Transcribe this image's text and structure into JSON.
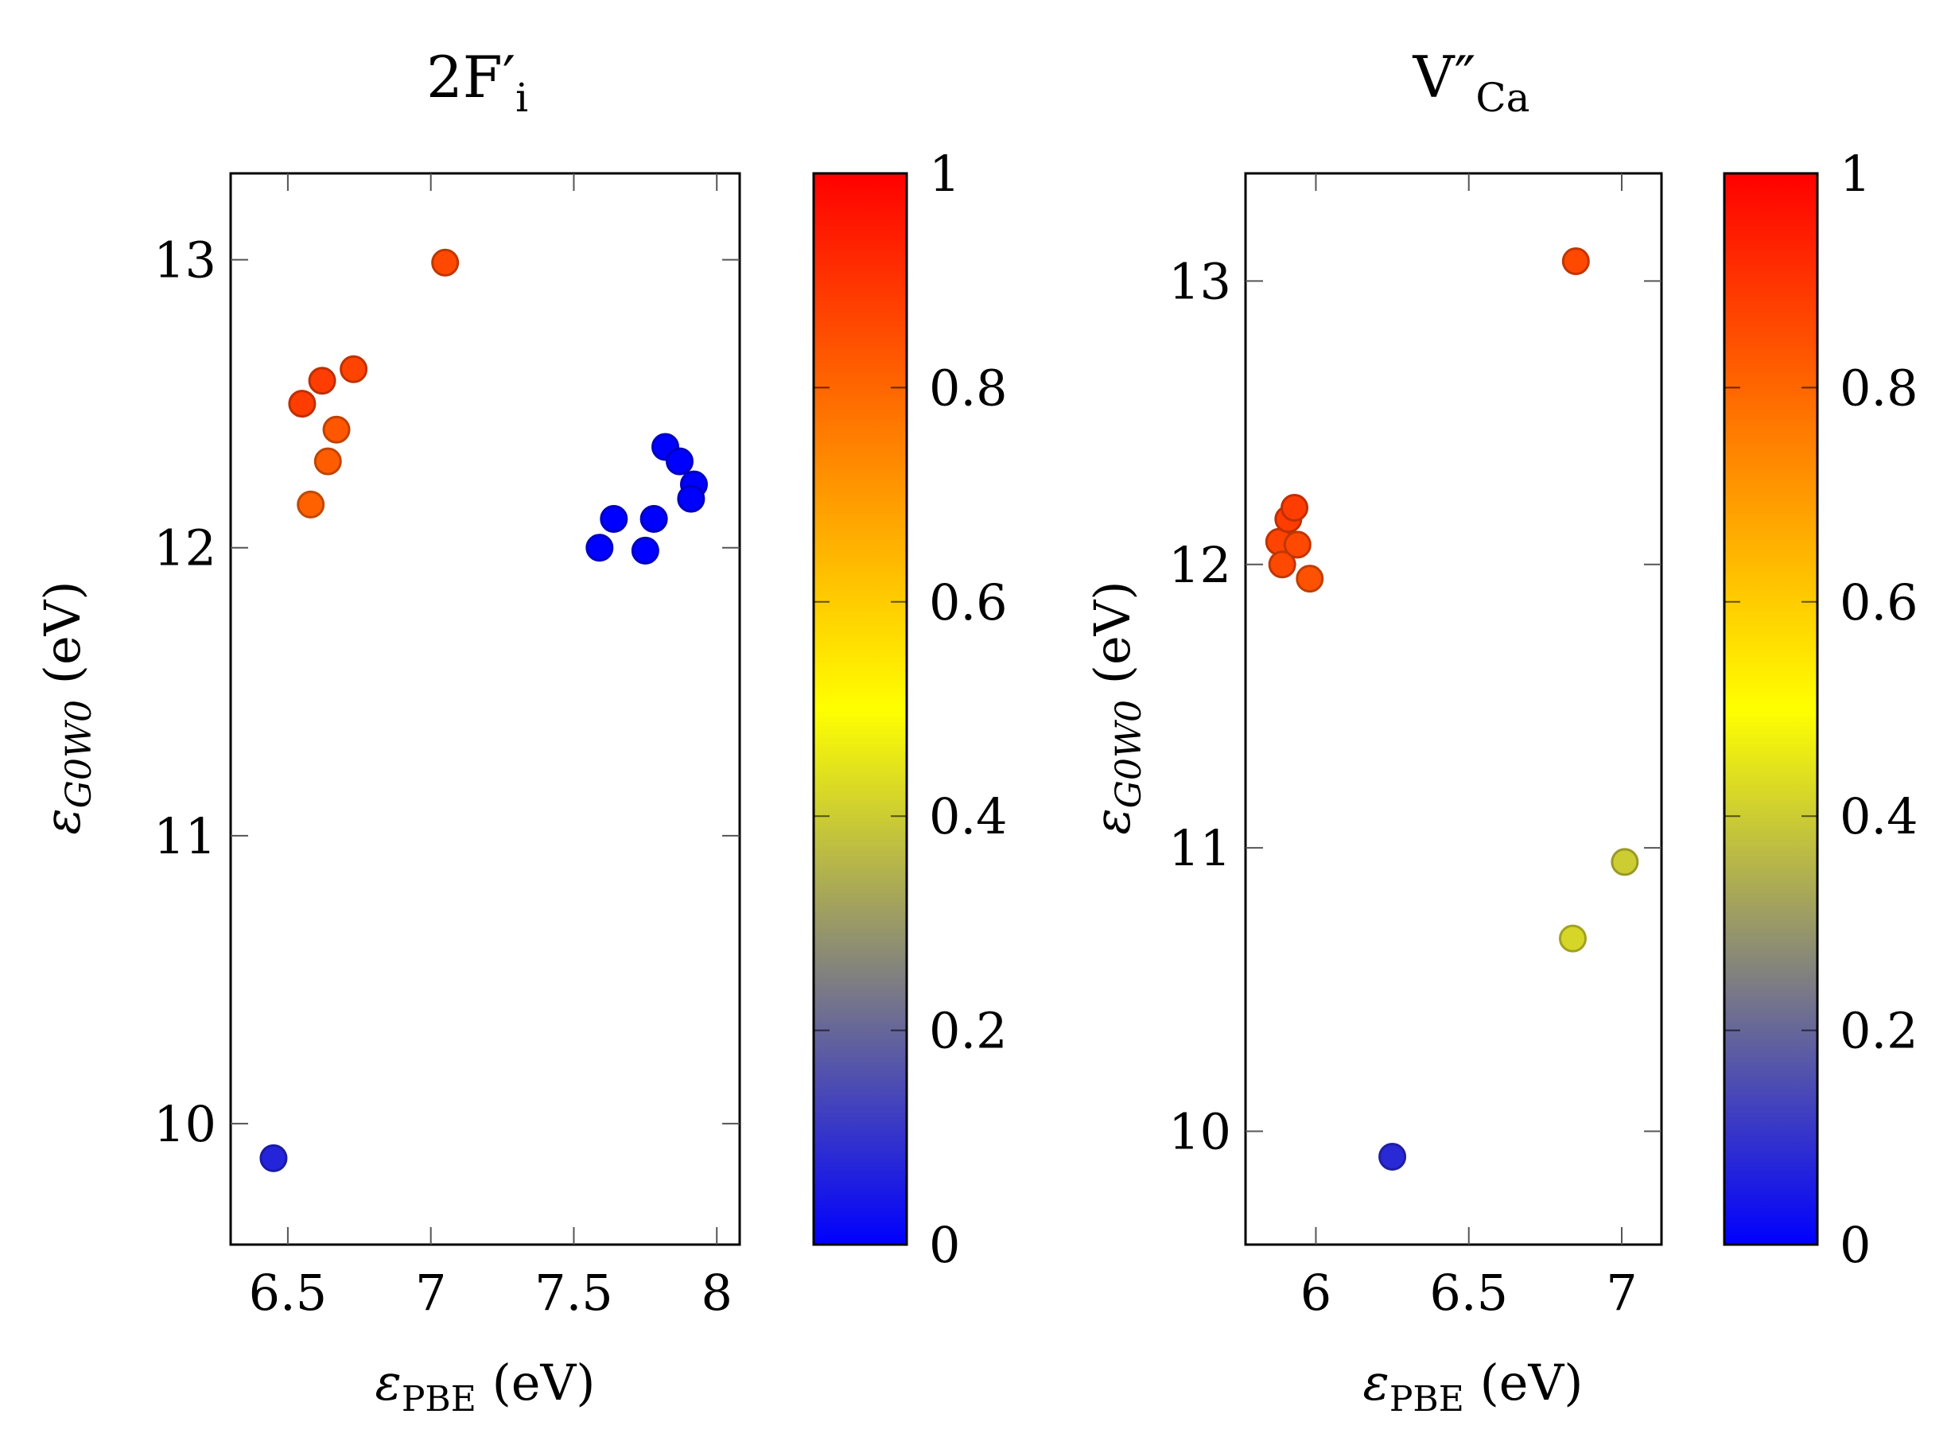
{
  "chart_data": [
    {
      "type": "scatter",
      "title": "2F′",
      "title_sub": "i",
      "xlabel": "ε",
      "xlabel_sub": "PBE",
      "xlabel_unit": " (eV)",
      "ylabel": "ε",
      "ylabel_sub": "G0W0",
      "ylabel_unit": " (eV)",
      "xlim": [
        6.3,
        8.08
      ],
      "ylim": [
        9.58,
        13.3
      ],
      "xticks": [
        6.5,
        7,
        7.5,
        8
      ],
      "xtick_labels": [
        "6.5",
        "7",
        "7.5",
        "8"
      ],
      "yticks": [
        10,
        11,
        12,
        13
      ],
      "ytick_labels": [
        "10",
        "11",
        "12",
        "13"
      ],
      "colorbar": {
        "range": [
          0,
          1
        ],
        "ticks": [
          0,
          0.2,
          0.4,
          0.6,
          0.8,
          1
        ],
        "tick_labels": [
          "0",
          "0.2",
          "0.4",
          "0.6",
          "0.8",
          "1"
        ],
        "colormap": [
          "#0000ff",
          "#808080",
          "#ffff00",
          "#ff8000",
          "#ff0000"
        ]
      },
      "points": [
        {
          "x": 6.45,
          "y": 9.88,
          "c": 0.07
        },
        {
          "x": 7.05,
          "y": 12.99,
          "c": 0.86
        },
        {
          "x": 6.55,
          "y": 12.5,
          "c": 0.88
        },
        {
          "x": 6.62,
          "y": 12.58,
          "c": 0.88
        },
        {
          "x": 6.73,
          "y": 12.62,
          "c": 0.87
        },
        {
          "x": 6.67,
          "y": 12.41,
          "c": 0.83
        },
        {
          "x": 6.64,
          "y": 12.3,
          "c": 0.82
        },
        {
          "x": 6.58,
          "y": 12.15,
          "c": 0.81
        },
        {
          "x": 7.59,
          "y": 12.0,
          "c": 0.0
        },
        {
          "x": 7.64,
          "y": 12.1,
          "c": 0.0
        },
        {
          "x": 7.75,
          "y": 11.99,
          "c": 0.0
        },
        {
          "x": 7.78,
          "y": 12.1,
          "c": 0.0
        },
        {
          "x": 7.82,
          "y": 12.35,
          "c": 0.0
        },
        {
          "x": 7.87,
          "y": 12.3,
          "c": 0.0
        },
        {
          "x": 7.92,
          "y": 12.22,
          "c": 0.0
        },
        {
          "x": 7.91,
          "y": 12.17,
          "c": 0.0
        }
      ]
    },
    {
      "type": "scatter",
      "title": "V″",
      "title_sub": "Ca",
      "xlabel": "ε",
      "xlabel_sub": "PBE",
      "xlabel_unit": " (eV)",
      "ylabel": "ε",
      "ylabel_sub": "G0W0",
      "ylabel_unit": " (eV)",
      "xlim": [
        5.77,
        7.13
      ],
      "ylim": [
        9.6,
        13.38
      ],
      "xticks": [
        6,
        6.5,
        7
      ],
      "xtick_labels": [
        "6",
        "6.5",
        "7"
      ],
      "yticks": [
        10,
        11,
        12,
        13
      ],
      "ytick_labels": [
        "10",
        "11",
        "12",
        "13"
      ],
      "colorbar": {
        "range": [
          0,
          1
        ],
        "ticks": [
          0,
          0.2,
          0.4,
          0.6,
          0.8,
          1
        ],
        "tick_labels": [
          "0",
          "0.2",
          "0.4",
          "0.6",
          "0.8",
          "1"
        ],
        "colormap": [
          "#0000ff",
          "#808080",
          "#ffff00",
          "#ff8000",
          "#ff0000"
        ]
      },
      "points": [
        {
          "x": 6.25,
          "y": 9.91,
          "c": 0.08
        },
        {
          "x": 6.85,
          "y": 13.07,
          "c": 0.86
        },
        {
          "x": 6.84,
          "y": 10.68,
          "c": 0.42
        },
        {
          "x": 7.01,
          "y": 10.95,
          "c": 0.4
        },
        {
          "x": 5.88,
          "y": 12.08,
          "c": 0.87
        },
        {
          "x": 5.89,
          "y": 12.0,
          "c": 0.86
        },
        {
          "x": 5.91,
          "y": 12.16,
          "c": 0.88
        },
        {
          "x": 5.93,
          "y": 12.2,
          "c": 0.88
        },
        {
          "x": 5.94,
          "y": 12.07,
          "c": 0.86
        },
        {
          "x": 5.98,
          "y": 11.95,
          "c": 0.84
        }
      ]
    }
  ]
}
